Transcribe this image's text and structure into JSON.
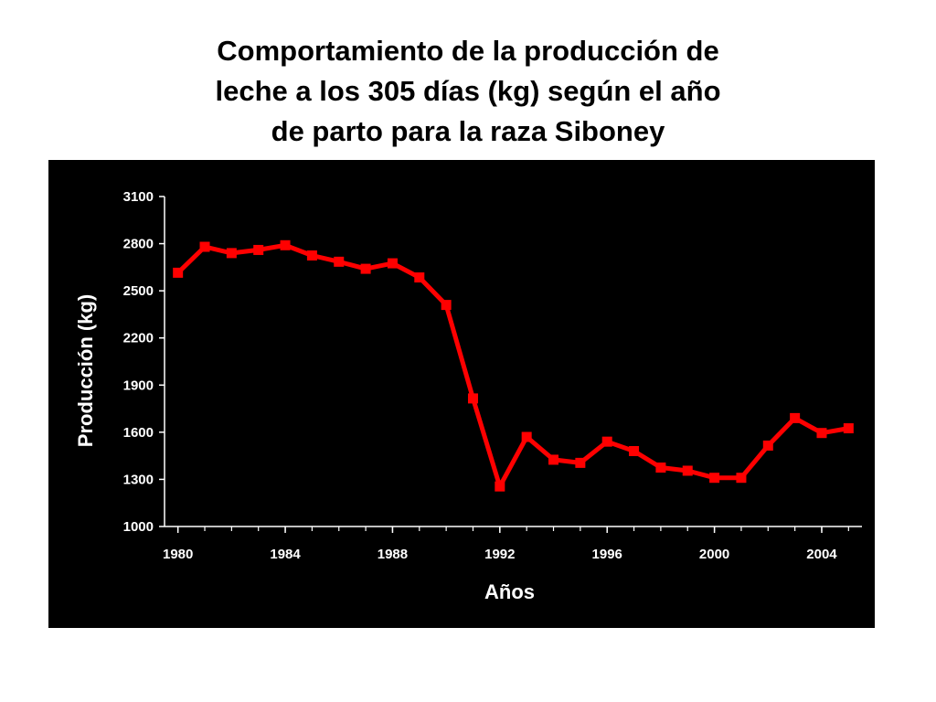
{
  "slide": {
    "title_lines": [
      "Comportamiento de la producción de",
      "leche a los 305 días (kg) según el año",
      "de parto para la raza Siboney"
    ]
  },
  "colors": {
    "panel_background": "#000000",
    "axis": "#ffffff",
    "text": "#ffffff",
    "series": "#ff0000"
  },
  "chart_data": {
    "type": "line",
    "title": "",
    "xlabel": "Años",
    "ylabel": "Producción (kg)",
    "xlim": [
      1979.5,
      2005.5
    ],
    "ylim": [
      1000,
      3100
    ],
    "x_ticks": [
      1980,
      1984,
      1988,
      1992,
      1996,
      2000,
      2004
    ],
    "y_ticks": [
      1000,
      1300,
      1600,
      1900,
      2200,
      2500,
      2800,
      3100
    ],
    "grid": false,
    "legend": "none",
    "marker": "square",
    "series": [
      {
        "x": [
          1980,
          1981,
          1982,
          1983,
          1984,
          1985,
          1986,
          1987,
          1988,
          1989,
          1990,
          1991,
          1992,
          1993,
          1994,
          1995,
          1996,
          1997,
          1998,
          1999,
          2000,
          2001,
          2002,
          2003,
          2004,
          2005
        ],
        "y": [
          2615,
          2780,
          2740,
          2760,
          2790,
          2725,
          2685,
          2640,
          2675,
          2585,
          2410,
          1815,
          1255,
          1570,
          1425,
          1405,
          1540,
          1480,
          1375,
          1355,
          1310,
          1310,
          1515,
          1690,
          1595,
          1625
        ]
      }
    ]
  }
}
